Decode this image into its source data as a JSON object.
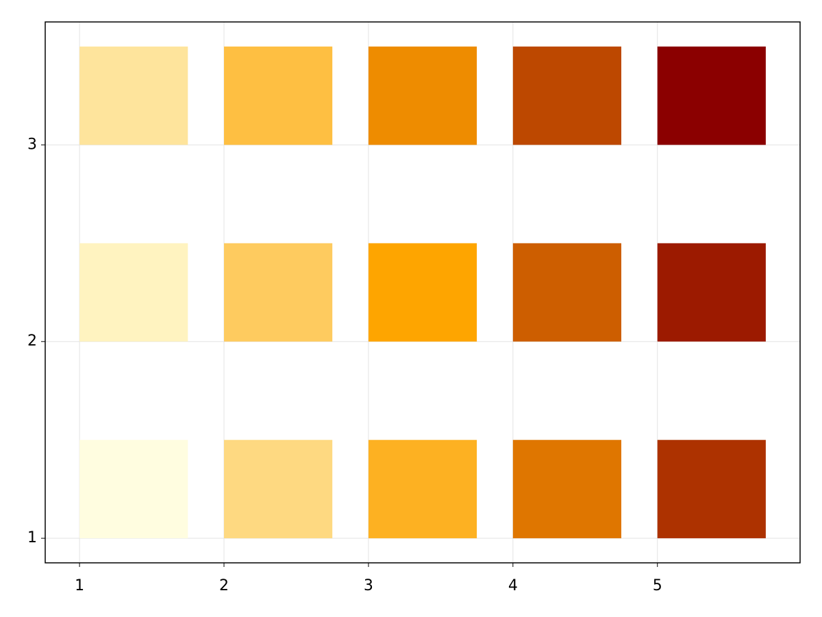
{
  "chart_data": {
    "type": "rect",
    "rects": [
      {
        "x": 1,
        "y": 1,
        "width": 0.75,
        "height": 0.5,
        "color": "#fffde0"
      },
      {
        "x": 1,
        "y": 2,
        "width": 0.75,
        "height": 0.5,
        "color": "#fff3c0"
      },
      {
        "x": 1,
        "y": 3,
        "width": 0.75,
        "height": 0.5,
        "color": "#fee49c"
      },
      {
        "x": 2,
        "y": 1,
        "width": 0.75,
        "height": 0.5,
        "color": "#fed981"
      },
      {
        "x": 2,
        "y": 2,
        "width": 0.75,
        "height": 0.5,
        "color": "#fecb5f"
      },
      {
        "x": 2,
        "y": 3,
        "width": 0.75,
        "height": 0.5,
        "color": "#febf42"
      },
      {
        "x": 3,
        "y": 1,
        "width": 0.75,
        "height": 0.5,
        "color": "#fdb122"
      },
      {
        "x": 3,
        "y": 2,
        "width": 0.75,
        "height": 0.5,
        "color": "#fea500"
      },
      {
        "x": 3,
        "y": 3,
        "width": 0.75,
        "height": 0.5,
        "color": "#ee8c00"
      },
      {
        "x": 4,
        "y": 1,
        "width": 0.75,
        "height": 0.5,
        "color": "#df7600"
      },
      {
        "x": 4,
        "y": 2,
        "width": 0.75,
        "height": 0.5,
        "color": "#cd5e00"
      },
      {
        "x": 4,
        "y": 3,
        "width": 0.75,
        "height": 0.5,
        "color": "#bd4800"
      },
      {
        "x": 5,
        "y": 1,
        "width": 0.75,
        "height": 0.5,
        "color": "#ad3200"
      },
      {
        "x": 5,
        "y": 2,
        "width": 0.75,
        "height": 0.5,
        "color": "#9c1a00"
      },
      {
        "x": 5,
        "y": 3,
        "width": 0.75,
        "height": 0.5,
        "color": "#8b0000"
      }
    ],
    "xlim": [
      0.7625,
      5.9875
    ],
    "xticks": [
      1,
      2,
      3,
      4,
      5
    ],
    "ylim": [
      0.875,
      3.625
    ],
    "yticks": [
      1,
      2,
      3
    ],
    "grid": true
  }
}
